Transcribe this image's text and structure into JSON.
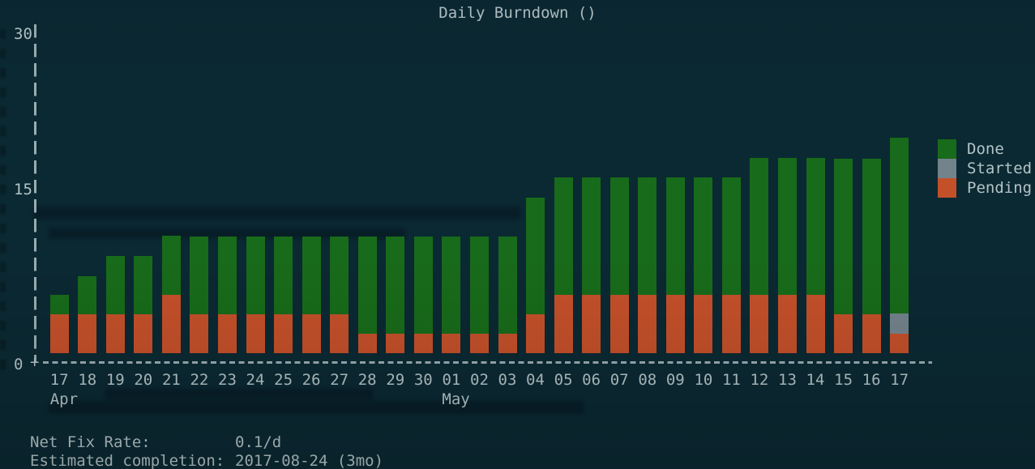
{
  "title": "Daily Burndown ()",
  "colors": {
    "background": "#0b2933",
    "text": "#b3c3c6",
    "done": "#186b1a",
    "started": "#73838b",
    "pending": "#c4502a"
  },
  "axis": {
    "y_ticks": [
      {
        "label": "30"
      },
      {
        "label": "15"
      },
      {
        "label": "0"
      }
    ]
  },
  "legend": {
    "items": [
      {
        "label": "Done",
        "color": "#186b1a"
      },
      {
        "label": "Started",
        "color": "#73838b"
      },
      {
        "label": "Pending",
        "color": "#c4502a"
      }
    ]
  },
  "chart_data": {
    "type": "bar",
    "stacked": true,
    "title": "Daily Burndown ()",
    "xlabel": "",
    "ylabel": "",
    "ylim": [
      0,
      30
    ],
    "y_tick_values": [
      0,
      15,
      30
    ],
    "grid": false,
    "legend_position": "right",
    "categories": [
      "17",
      "18",
      "19",
      "20",
      "21",
      "22",
      "23",
      "24",
      "25",
      "26",
      "27",
      "28",
      "29",
      "30",
      "01",
      "02",
      "03",
      "04",
      "05",
      "06",
      "07",
      "08",
      "09",
      "10",
      "11",
      "12",
      "13",
      "14",
      "15",
      "16",
      "17"
    ],
    "month_labels": [
      {
        "label": "Apr",
        "category_index": 0
      },
      {
        "label": "May",
        "category_index": 14
      }
    ],
    "series": [
      {
        "name": "Pending",
        "color": "#c4502a",
        "values": [
          3.5,
          3.5,
          3.5,
          3.5,
          5.3,
          3.5,
          3.5,
          3.5,
          3.5,
          3.5,
          3.5,
          1.8,
          1.8,
          1.8,
          1.8,
          1.8,
          1.8,
          3.5,
          5.3,
          5.3,
          5.3,
          5.3,
          5.3,
          5.3,
          5.3,
          5.3,
          5.3,
          5.3,
          3.5,
          3.5,
          1.8
        ]
      },
      {
        "name": "Started",
        "color": "#73838b",
        "values": [
          0,
          0,
          0,
          0,
          0,
          0,
          0,
          0,
          0,
          0,
          0,
          0,
          0,
          0,
          0,
          0,
          0,
          0,
          0,
          0,
          0,
          0,
          0,
          0,
          0,
          0,
          0,
          0,
          0,
          0,
          1.8
        ]
      },
      {
        "name": "Done",
        "color": "#186b1a",
        "values": [
          1.8,
          3.5,
          5.3,
          5.3,
          5.3,
          7.1,
          7.1,
          7.1,
          7.1,
          7.1,
          7.1,
          8.8,
          8.8,
          8.8,
          8.8,
          8.8,
          8.8,
          10.6,
          10.6,
          10.6,
          10.6,
          10.6,
          10.6,
          10.6,
          10.6,
          12.4,
          12.4,
          12.4,
          14.1,
          14.1,
          15.9
        ]
      }
    ]
  },
  "footer": {
    "net_fix_rate_label": "Net Fix Rate:",
    "net_fix_rate_value": "0.1/d",
    "completion_label": "Estimated completion:",
    "completion_value": "2017-08-24 (3mo)"
  }
}
